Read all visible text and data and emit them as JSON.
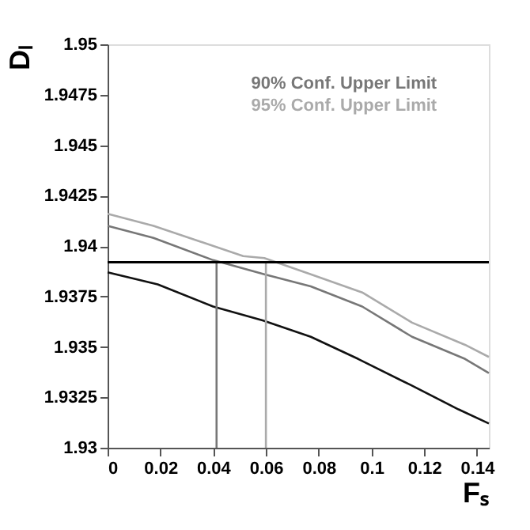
{
  "chart_data": {
    "type": "line",
    "xlabel": "Fₛ",
    "ylabel": "Dₗ",
    "xlim": [
      0,
      0.1445
    ],
    "ylim": [
      1.93,
      1.95
    ],
    "xticks": [
      0,
      0.02,
      0.04,
      0.06,
      0.08,
      0.1,
      0.12,
      0.14
    ],
    "yticks": [
      1.93,
      1.9325,
      1.935,
      1.9375,
      1.94,
      1.9425,
      1.945,
      1.9475,
      1.95
    ],
    "legend": "top",
    "grid": false,
    "series": [
      {
        "color": "#111111",
        "x": [
          0,
          0.019,
          0.04,
          0.059,
          0.077,
          0.095,
          0.115,
          0.133,
          0.1445
        ],
        "values": [
          1.9387,
          1.9381,
          1.937,
          1.9363,
          1.9355,
          1.9344,
          1.9331,
          1.9319,
          1.9312
        ]
      },
      {
        "name": "90% Conf. Upper Limit",
        "color": "#777777",
        "x": [
          0,
          0.0174,
          0.04,
          0.0594,
          0.077,
          0.0965,
          0.1154,
          0.1355,
          0.1445
        ],
        "values": [
          1.941,
          1.9404,
          1.9393,
          1.9386,
          1.938,
          1.937,
          1.9355,
          1.9344,
          1.9337
        ]
      },
      {
        "name": "95% Conf. Upper Limit",
        "color": "#aaaaaa",
        "x": [
          0,
          0.0174,
          0.0514,
          0.0594,
          0.077,
          0.0965,
          0.1154,
          0.1355,
          0.1445
        ],
        "values": [
          1.9416,
          1.941,
          1.9395,
          1.9394,
          1.9386,
          1.9377,
          1.9362,
          1.9351,
          1.9345
        ]
      },
      {
        "type": "line",
        "color": "#777777",
        "x": [
          0.0413,
          0.0413
        ],
        "values": [
          1.93,
          1.9392
        ]
      },
      {
        "type": "line",
        "color": "#aaaaaa",
        "x": [
          0.06,
          0.06
        ],
        "values": [
          1.93,
          1.9392
        ]
      }
    ],
    "ref_lines": [
      {
        "axis": "y",
        "value": 1.9392,
        "color": "#000000"
      }
    ]
  }
}
